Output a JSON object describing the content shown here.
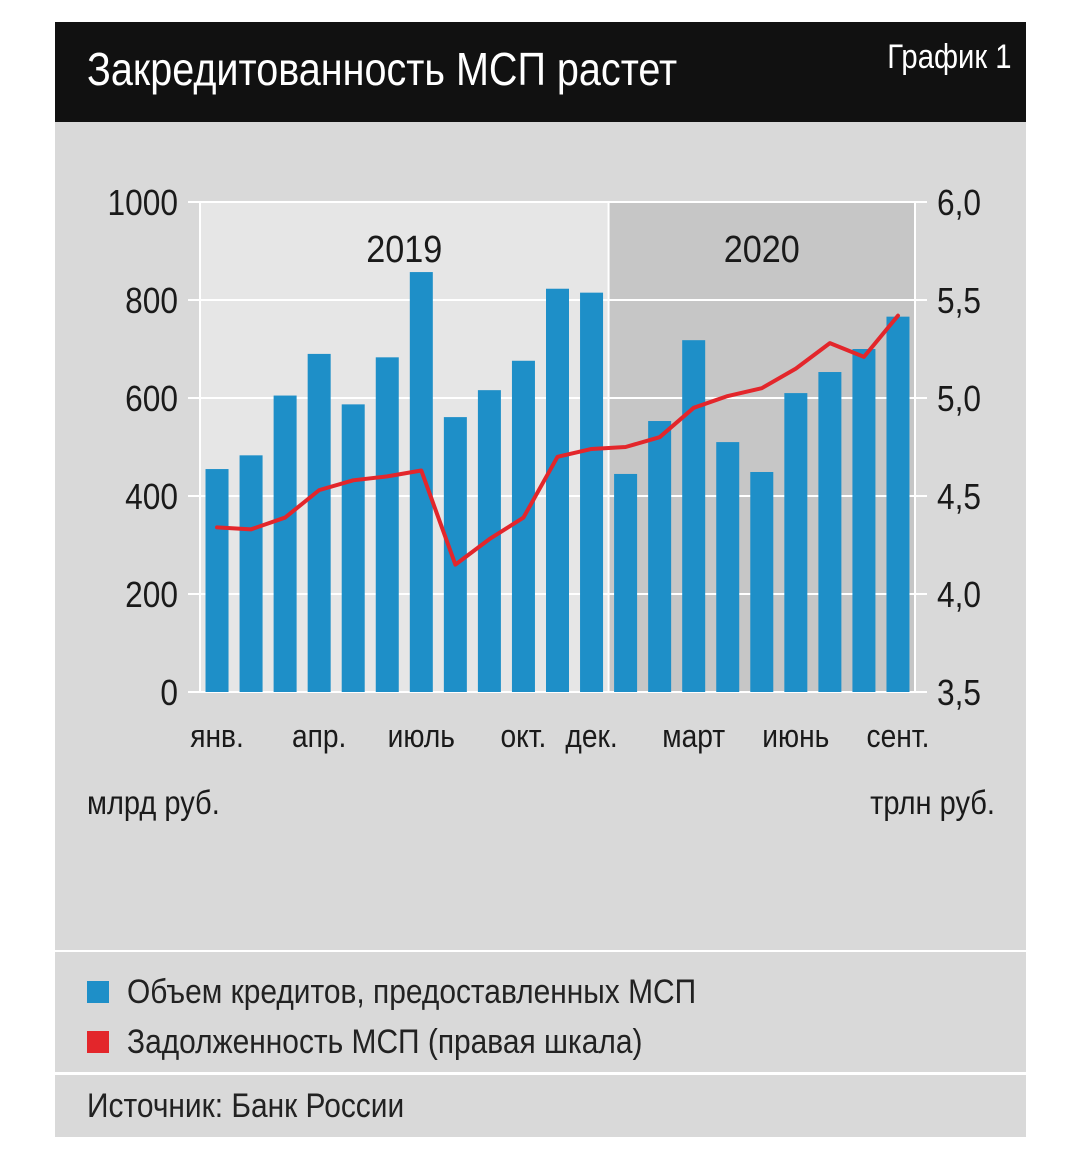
{
  "header": {
    "title": "Закредитованность МСП растет",
    "label": "График 1"
  },
  "legend": {
    "items": [
      {
        "label": "Объем кредитов, предоставленных МСП",
        "color": "#1e8fc8"
      },
      {
        "label": "Задолженность МСП (правая шкала)",
        "color": "#e3262b"
      }
    ]
  },
  "source": "Источник: Банк России",
  "chart_data": {
    "type": "bar",
    "x_tick_labels": [
      "янв.",
      "апр.",
      "июль",
      "окт.",
      "дек.",
      "март",
      "июнь",
      "сент."
    ],
    "x_tick_indices": [
      0,
      3,
      6,
      9,
      11,
      14,
      17,
      20
    ],
    "period_labels": [
      "2019",
      "2020"
    ],
    "y_left": {
      "label": "млрд руб.",
      "ticks": [
        "1000",
        "800",
        "600",
        "400",
        "200",
        "0"
      ],
      "ylim": [
        0,
        1000
      ]
    },
    "y_right": {
      "label": "трлн руб.",
      "ticks": [
        "6,0",
        "5,5",
        "5,0",
        "4,5",
        "4,0",
        "3,5"
      ],
      "ylim": [
        3.5,
        6.0
      ]
    },
    "series": [
      {
        "name": "Объем кредитов, предоставленных МСП",
        "axis": "left",
        "color": "#1e8fc8",
        "values": [
          455,
          483,
          605,
          690,
          587,
          683,
          857,
          561,
          616,
          676,
          823,
          815,
          445,
          553,
          718,
          510,
          449,
          610,
          653,
          700,
          766
        ]
      },
      {
        "name": "Задолженность МСП (правая шкала)",
        "axis": "right",
        "color": "#e3262b",
        "values": [
          4.34,
          4.33,
          4.39,
          4.53,
          4.58,
          4.6,
          4.63,
          4.15,
          4.28,
          4.39,
          4.7,
          4.74,
          4.75,
          4.8,
          4.95,
          5.01,
          5.05,
          5.15,
          5.28,
          5.21,
          5.42
        ]
      }
    ]
  }
}
